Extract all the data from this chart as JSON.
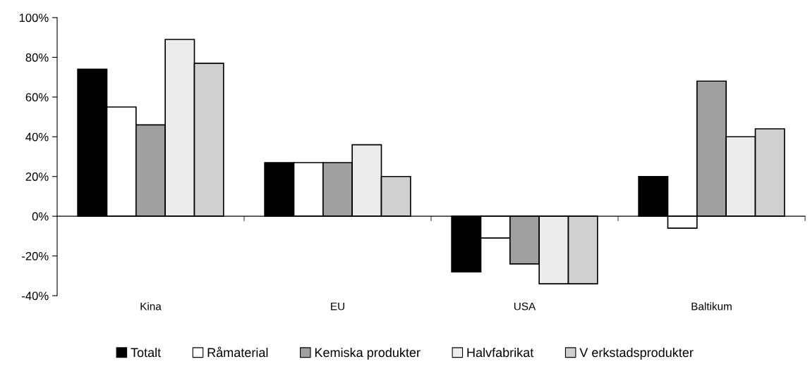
{
  "chart_data": {
    "type": "bar",
    "categories": [
      "Kina",
      "EU",
      "USA",
      "Baltikum"
    ],
    "series": [
      {
        "name": "Totalt",
        "color": "#000000",
        "values": [
          74,
          27,
          -28,
          20
        ]
      },
      {
        "name": "Råmaterial",
        "color": "#ffffff",
        "values": [
          55,
          27,
          -11,
          -6
        ]
      },
      {
        "name": "Kemiska produkter",
        "color": "#a0a0a0",
        "values": [
          46,
          27,
          -24,
          68
        ]
      },
      {
        "name": "Halvfabrikat",
        "color": "#ececec",
        "values": [
          89,
          36,
          -34,
          40
        ]
      },
      {
        "name": "V erkstadsprodukter",
        "color": "#d0d0d0",
        "values": [
          77,
          20,
          -34,
          44
        ]
      }
    ],
    "ylim": [
      -40,
      100
    ],
    "yticks": [
      {
        "value": -40,
        "label": "-40%"
      },
      {
        "value": -20,
        "label": "-20%"
      },
      {
        "value": 0,
        "label": "0%"
      },
      {
        "value": 20,
        "label": "20%"
      },
      {
        "value": 40,
        "label": "40%"
      },
      {
        "value": 60,
        "label": "60%"
      },
      {
        "value": 80,
        "label": "80%"
      },
      {
        "value": 100,
        "label": "100%"
      }
    ],
    "legend": "bottom"
  }
}
